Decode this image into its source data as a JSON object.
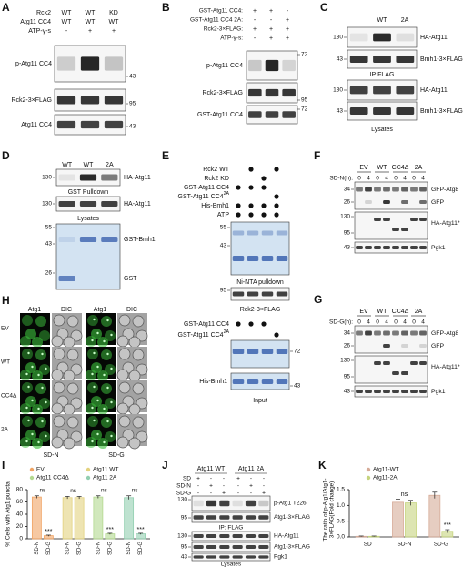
{
  "A": {
    "letter": "A",
    "rows": [
      {
        "label": "Rck2",
        "cols": [
          "WT",
          "WT",
          "KD"
        ]
      },
      {
        "label": "Atg11 CC4",
        "cols": [
          "WT",
          "WT",
          "WT"
        ]
      },
      {
        "label": "ATP-γ-s",
        "cols": [
          "-",
          "+",
          "+"
        ]
      }
    ],
    "blots": [
      "p-Atg11 CC4",
      "Rck2-3×FLAG",
      "Atg11 CC4"
    ],
    "mw": [
      43,
      95,
      43
    ]
  },
  "B": {
    "letter": "B",
    "rows": [
      {
        "label": "GST-Atg11 CC4:",
        "cols": [
          "+",
          "+",
          "-"
        ]
      },
      {
        "label": "GST-Atg11 CC4 2A:",
        "cols": [
          "-",
          "-",
          "+"
        ]
      },
      {
        "label": "Rck2-3×FLAG:",
        "cols": [
          "+",
          "+",
          "+"
        ]
      },
      {
        "label": "ATP-γ-s:",
        "cols": [
          "-",
          "+",
          "+"
        ]
      }
    ],
    "blots": [
      "p-Atg11 CC4",
      "Rck2-3×FLAG",
      "GST-Atg11 CC4"
    ],
    "mw": [
      72,
      95,
      72
    ]
  },
  "C": {
    "letter": "C",
    "columns": [
      "WT",
      "2A"
    ],
    "blots": [
      "HA-Atg11",
      "Bmh1-3×FLAG",
      "HA-Atg11",
      "Bmh1-3×FLAG"
    ],
    "mw": [
      130,
      43,
      130,
      43
    ],
    "sections": [
      "IP:FLAG",
      "Lysates"
    ]
  },
  "D": {
    "letter": "D",
    "columns": [
      "WT",
      "WT",
      "2A"
    ],
    "blots": [
      "HA-Atg11",
      "HA-Atg11"
    ],
    "sections": [
      "GST Pulldown",
      "Lysates"
    ],
    "gel_bands": [
      "GST-Bmh1",
      "GST"
    ],
    "mw": [
      130,
      130,
      55,
      43,
      26
    ]
  },
  "E": {
    "letter": "E",
    "rows": [
      {
        "text": "Rck2 WT"
      },
      {
        "text": "Rck2 KD"
      },
      {
        "text": "GST-Atg11 CC4"
      },
      {
        "text": "GST-Atg11 CC4",
        "sup": "2A"
      },
      {
        "text": "His-Bmh1"
      },
      {
        "text": "ATP"
      }
    ],
    "mw_pulldown": [
      55,
      43
    ],
    "section_pulldown": "Ni-NTA pulldown",
    "mw_flag": 95,
    "flag_label": "Rck2-3×FLAG",
    "input_rows": [
      {
        "text": "GST-Atg11 CC4"
      },
      {
        "text": "GST-Atg11 CC4",
        "sup": "2A"
      }
    ],
    "mw_input": [
      72,
      43
    ],
    "input_blot": "His-Bmh1",
    "section_input": "Input"
  },
  "F": {
    "letter": "F",
    "groups": [
      "EV",
      "WT",
      "CC4Δ",
      "2A"
    ],
    "time_label": "SD-N(h):",
    "times": [
      0,
      4
    ],
    "blots": [
      "GFP-Atg8",
      "GFP",
      "HA-Atg11*",
      "Pgk1"
    ],
    "mw": [
      34,
      26,
      130,
      95,
      43
    ]
  },
  "G": {
    "letter": "G",
    "groups": [
      "EV",
      "WT",
      "CC4Δ",
      "2A"
    ],
    "time_label": "SD-G(h):",
    "times": [
      0,
      4
    ],
    "blots": [
      "GFP-Atg8",
      "GFP",
      "HA-Atg11*",
      "Pgk1"
    ],
    "mw": [
      34,
      26,
      130,
      95,
      43
    ]
  },
  "H": {
    "letter": "H",
    "channels": [
      "Atg1",
      "DIC"
    ],
    "rows": [
      "EV",
      "WT",
      "CC4Δ",
      "2A"
    ],
    "conditions": [
      "SD-N",
      "SD-G"
    ]
  },
  "J": {
    "letter": "J",
    "strains": [
      "Atg11 WT",
      "Atg11 2A"
    ],
    "rows": [
      {
        "label": "SD",
        "cols": [
          "+",
          "-",
          "-"
        ]
      },
      {
        "label": "SD-N",
        "cols": [
          "-",
          "+",
          "-"
        ]
      },
      {
        "label": "SD-G",
        "cols": [
          "-",
          "-",
          "+"
        ]
      }
    ],
    "blots": [
      "p-Atg1 T226",
      "Atg1-3×FLAG",
      "HA-Atg11",
      "Atg1-3×FLAG",
      "Pgk1"
    ],
    "sections": [
      "IP: FLAG",
      "Lysates"
    ],
    "mw": [
      130,
      95,
      130,
      95,
      43
    ]
  },
  "chart_data": [
    {
      "type": "bar",
      "letter": "I",
      "ylabel": "% Cells with Atg1 puncta",
      "categories": [
        "SD-N",
        "SD-G"
      ],
      "series": [
        {
          "name": "EV",
          "color": "#f0a464",
          "values": [
            68,
            5
          ],
          "errors": [
            2,
            1
          ],
          "annotation": "ns",
          "star": "***"
        },
        {
          "name": "Atg11 WT",
          "color": "#e3d27e",
          "values": [
            67,
            67
          ],
          "errors": [
            2,
            2
          ],
          "annotation": "ns"
        },
        {
          "name": "Atg11 CC4Δ",
          "color": "#b3d98f",
          "values": [
            68,
            8
          ],
          "errors": [
            2,
            1
          ],
          "annotation": "ns",
          "star": "***"
        },
        {
          "name": "Atg11 2A",
          "color": "#93cfb1",
          "values": [
            67,
            8
          ],
          "errors": [
            3,
            1
          ],
          "annotation": "ns",
          "star": "***"
        }
      ],
      "ylim": [
        0,
        80
      ],
      "yticks": [
        0,
        20,
        40,
        60,
        80
      ]
    },
    {
      "type": "bar",
      "letter": "K",
      "ylabel": [
        "The ratio of p-Atg1/Atg1-",
        "3×FLAG(Fold change)"
      ],
      "categories": [
        "SD",
        "SD-N",
        "SD-G"
      ],
      "series": [
        {
          "name": "Atg11-WT",
          "color": "#d6ab98",
          "values": [
            0.02,
            1.1,
            1.32
          ],
          "errors": [
            0.01,
            0.1,
            0.1
          ]
        },
        {
          "name": "Atg11-2A",
          "color": "#c6d47f",
          "values": [
            0.02,
            1.08,
            0.18
          ],
          "errors": [
            0.01,
            0.08,
            0.05
          ]
        }
      ],
      "annotations": [
        {
          "text": "ns",
          "category": 1
        },
        {
          "text": "***",
          "category": 2,
          "series": 1
        }
      ],
      "ylim": [
        0,
        1.5
      ],
      "yticks": [
        {
          "value": 0,
          "label": "0.0"
        },
        0.5,
        {
          "value": 1,
          "label": "1.0"
        },
        1.5
      ]
    }
  ]
}
